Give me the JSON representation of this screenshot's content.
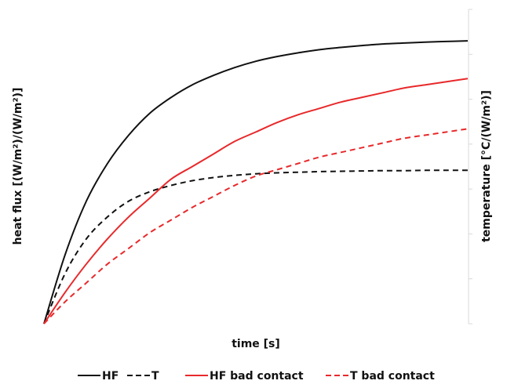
{
  "chart_data": {
    "type": "line",
    "title": "",
    "xlabel": "time [s]",
    "ylabel": "heat flux [(W/m²)/(W/m²)]",
    "y2label": "temperature [°C/(W/m²)]",
    "xlim": [
      0,
      10
    ],
    "ylim": [
      0,
      1
    ],
    "y2lim": [
      0,
      1
    ],
    "grid": false,
    "legend_position": "bottom",
    "x": [
      0,
      0.5,
      1,
      1.5,
      2,
      2.5,
      3,
      3.5,
      4,
      4.5,
      5,
      5.5,
      6,
      6.5,
      7,
      7.5,
      8,
      8.5,
      9,
      9.5,
      10
    ],
    "series": [
      {
        "name": "HF",
        "axis": "left",
        "color": "#111111",
        "dash": "solid",
        "values": [
          0,
          0.22,
          0.39,
          0.51,
          0.6,
          0.67,
          0.72,
          0.76,
          0.79,
          0.815,
          0.835,
          0.85,
          0.862,
          0.872,
          0.879,
          0.885,
          0.89,
          0.893,
          0.896,
          0.898,
          0.9
        ]
      },
      {
        "name": "T",
        "axis": "right",
        "color": "#111111",
        "dash": "dashed",
        "values": [
          0,
          0.16,
          0.27,
          0.34,
          0.39,
          0.42,
          0.44,
          0.455,
          0.465,
          0.472,
          0.477,
          0.48,
          0.482,
          0.484,
          0.485,
          0.486,
          0.487,
          0.487,
          0.488,
          0.488,
          0.488
        ]
      },
      {
        "name": "HF bad contact",
        "axis": "left",
        "color": "#e8292b",
        "dash": "solid",
        "values": [
          0,
          0.1,
          0.19,
          0.27,
          0.34,
          0.4,
          0.46,
          0.5,
          0.54,
          0.58,
          0.61,
          0.64,
          0.665,
          0.685,
          0.705,
          0.72,
          0.735,
          0.75,
          0.76,
          0.77,
          0.78
        ]
      },
      {
        "name": "T bad contact",
        "axis": "right",
        "color": "#e8292b",
        "dash": "dashed",
        "values": [
          0,
          0.07,
          0.13,
          0.19,
          0.24,
          0.29,
          0.33,
          0.37,
          0.405,
          0.44,
          0.47,
          0.49,
          0.51,
          0.53,
          0.545,
          0.56,
          0.575,
          0.59,
          0.6,
          0.61,
          0.62
        ]
      }
    ]
  }
}
